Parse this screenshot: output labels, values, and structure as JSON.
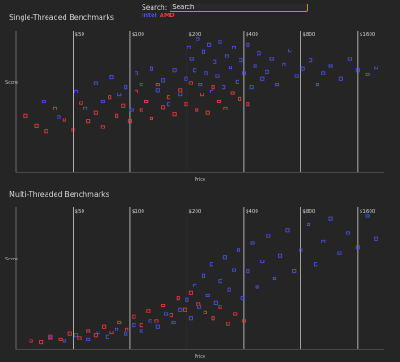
{
  "search": {
    "label": "Search:",
    "placeholder": "",
    "value": "Search"
  },
  "legend": {
    "intel": "Intel",
    "amd": "AMD",
    "intel_color": "#4b52e8",
    "amd_color": "#e83c3c"
  },
  "chart_data": [
    {
      "type": "scatter",
      "title": "Single-Threaded Benchmarks",
      "xlabel": "Price",
      "ylabel": "Score",
      "x_scale": "log",
      "xlim": [
        25,
        2200
      ],
      "ylim": [
        0,
        100
      ],
      "price_markers": [
        "$50",
        "$100",
        "$200",
        "$400",
        "$800",
        "$1600"
      ],
      "price_values": [
        50,
        100,
        200,
        400,
        800,
        1600
      ],
      "grid": false,
      "legend": "top-center",
      "series": [
        {
          "name": "Intel",
          "color": "#4b52e8",
          "points": [
            [
              35,
              50
            ],
            [
              42,
              39
            ],
            [
              52,
              57
            ],
            [
              58,
              45
            ],
            [
              66,
              63
            ],
            [
              72,
              50
            ],
            [
              80,
              67
            ],
            [
              88,
              55
            ],
            [
              95,
              60
            ],
            [
              102,
              44
            ],
            [
              108,
              70
            ],
            [
              115,
              62
            ],
            [
              122,
              50
            ],
            [
              130,
              73
            ],
            [
              140,
              58
            ],
            [
              150,
              65
            ],
            [
              160,
              48
            ],
            [
              172,
              72
            ],
            [
              185,
              55
            ],
            [
              198,
              66
            ],
            [
              205,
              88
            ],
            [
              212,
              80
            ],
            [
              220,
              72
            ],
            [
              228,
              94
            ],
            [
              235,
              62
            ],
            [
              245,
              85
            ],
            [
              252,
              70
            ],
            [
              262,
              90
            ],
            [
              270,
              57
            ],
            [
              280,
              78
            ],
            [
              290,
              68
            ],
            [
              300,
              92
            ],
            [
              312,
              60
            ],
            [
              325,
              82
            ],
            [
              340,
              74
            ],
            [
              355,
              88
            ],
            [
              370,
              64
            ],
            [
              385,
              79
            ],
            [
              400,
              70
            ],
            [
              420,
              90
            ],
            [
              440,
              60
            ],
            [
              460,
              75
            ],
            [
              480,
              84
            ],
            [
              500,
              66
            ],
            [
              530,
              71
            ],
            [
              560,
              80
            ],
            [
              600,
              62
            ],
            [
              650,
              76
            ],
            [
              700,
              86
            ],
            [
              760,
              68
            ],
            [
              820,
              73
            ],
            [
              900,
              79
            ],
            [
              980,
              62
            ],
            [
              1050,
              70
            ],
            [
              1150,
              75
            ],
            [
              1300,
              66
            ],
            [
              1450,
              80
            ],
            [
              1600,
              72
            ],
            [
              1800,
              69
            ],
            [
              2000,
              74
            ]
          ]
        },
        {
          "name": "AMD",
          "color": "#e83c3c",
          "points": [
            [
              28,
              40
            ],
            [
              32,
              33
            ],
            [
              36,
              29
            ],
            [
              40,
              45
            ],
            [
              45,
              37
            ],
            [
              50,
              30
            ],
            [
              55,
              49
            ],
            [
              60,
              36
            ],
            [
              66,
              42
            ],
            [
              72,
              32
            ],
            [
              78,
              53
            ],
            [
              85,
              40
            ],
            [
              92,
              47
            ],
            [
              100,
              36
            ],
            [
              108,
              57
            ],
            [
              115,
              44
            ],
            [
              122,
              50
            ],
            [
              130,
              38
            ],
            [
              140,
              62
            ],
            [
              150,
              46
            ],
            [
              160,
              53
            ],
            [
              172,
              41
            ],
            [
              185,
              58
            ],
            [
              198,
              48
            ],
            [
              210,
              63
            ],
            [
              225,
              44
            ],
            [
              240,
              55
            ],
            [
              258,
              42
            ],
            [
              275,
              60
            ],
            [
              295,
              50
            ],
            [
              320,
              45
            ],
            [
              350,
              56
            ],
            [
              380,
              52
            ],
            [
              420,
              48
            ]
          ]
        }
      ]
    },
    {
      "type": "scatter",
      "title": "Multi-Threaded Benchmarks",
      "xlabel": "Price",
      "ylabel": "Score",
      "x_scale": "log",
      "xlim": [
        25,
        2200
      ],
      "ylim": [
        0,
        100
      ],
      "price_markers": [
        "$50",
        "$100",
        "$200",
        "$400",
        "$800",
        "$1600"
      ],
      "price_values": [
        50,
        100,
        200,
        400,
        800,
        1600
      ],
      "grid": false,
      "legend": "top-center",
      "series": [
        {
          "name": "Intel",
          "color": "#4b52e8",
          "points": [
            [
              38,
              8
            ],
            [
              45,
              6
            ],
            [
              52,
              10
            ],
            [
              60,
              7
            ],
            [
              68,
              12
            ],
            [
              76,
              9
            ],
            [
              85,
              14
            ],
            [
              95,
              11
            ],
            [
              105,
              17
            ],
            [
              115,
              13
            ],
            [
              128,
              20
            ],
            [
              140,
              16
            ],
            [
              155,
              25
            ],
            [
              170,
              19
            ],
            [
              185,
              28
            ],
            [
              200,
              35
            ],
            [
              210,
              22
            ],
            [
              220,
              45
            ],
            [
              232,
              30
            ],
            [
              245,
              52
            ],
            [
              258,
              38
            ],
            [
              270,
              60
            ],
            [
              285,
              33
            ],
            [
              300,
              48
            ],
            [
              318,
              65
            ],
            [
              335,
              42
            ],
            [
              355,
              56
            ],
            [
              375,
              70
            ],
            [
              395,
              36
            ],
            [
              420,
              55
            ],
            [
              445,
              75
            ],
            [
              470,
              44
            ],
            [
              500,
              62
            ],
            [
              540,
              80
            ],
            [
              580,
              50
            ],
            [
              620,
              66
            ],
            [
              680,
              84
            ],
            [
              740,
              55
            ],
            [
              800,
              70
            ],
            [
              880,
              88
            ],
            [
              960,
              60
            ],
            [
              1050,
              76
            ],
            [
              1150,
              92
            ],
            [
              1280,
              68
            ],
            [
              1420,
              82
            ],
            [
              1600,
              72
            ],
            [
              1800,
              94
            ],
            [
              2000,
              78
            ]
          ]
        },
        {
          "name": "AMD",
          "color": "#e83c3c",
          "points": [
            [
              30,
              6
            ],
            [
              34,
              5
            ],
            [
              38,
              9
            ],
            [
              43,
              7
            ],
            [
              48,
              11
            ],
            [
              54,
              8
            ],
            [
              60,
              13
            ],
            [
              66,
              10
            ],
            [
              73,
              16
            ],
            [
              80,
              12
            ],
            [
              88,
              19
            ],
            [
              96,
              14
            ],
            [
              105,
              23
            ],
            [
              115,
              17
            ],
            [
              125,
              27
            ],
            [
              138,
              20
            ],
            [
              150,
              31
            ],
            [
              165,
              24
            ],
            [
              180,
              36
            ],
            [
              195,
              28
            ],
            [
              210,
              40
            ],
            [
              230,
              32
            ],
            [
              250,
              26
            ],
            [
              275,
              22
            ],
            [
              300,
              30
            ],
            [
              330,
              18
            ],
            [
              360,
              25
            ],
            [
              400,
              20
            ]
          ]
        }
      ]
    }
  ]
}
